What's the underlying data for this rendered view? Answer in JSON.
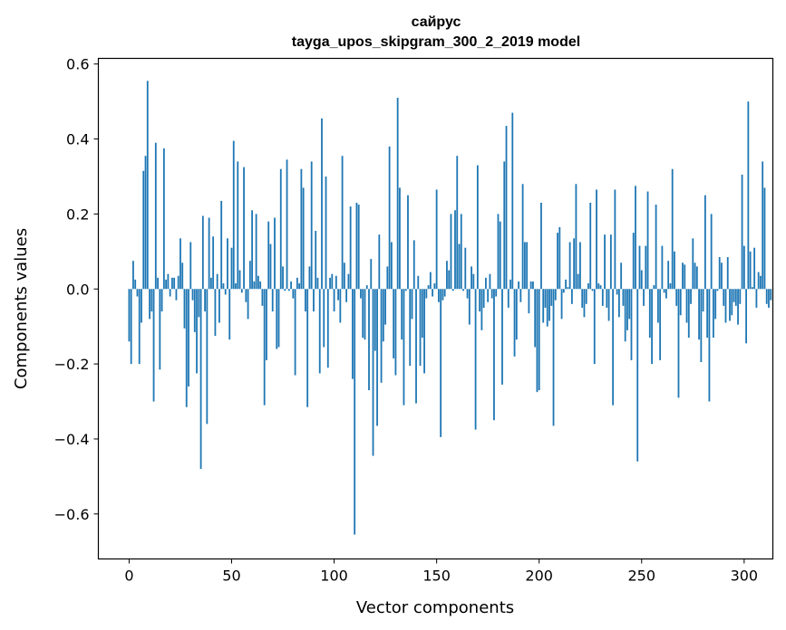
{
  "chart_data": {
    "type": "bar",
    "title_line1": "сайрус",
    "title_line2": "tayga_upos_skipgram_300_2_2019 model",
    "xlabel": "Vector components",
    "ylabel": "Components values",
    "xlim": [
      -15,
      314
    ],
    "ylim": [
      -0.72,
      0.615
    ],
    "xticks": [
      0,
      50,
      100,
      150,
      200,
      250,
      300
    ],
    "xtick_labels": [
      "0",
      "50",
      "100",
      "150",
      "200",
      "250",
      "300"
    ],
    "yticks": [
      -0.6,
      -0.4,
      -0.2,
      0.0,
      0.2,
      0.4,
      0.6
    ],
    "ytick_labels": [
      "−0.6",
      "−0.4",
      "−0.2",
      "0.0",
      "0.2",
      "0.4",
      "0.6"
    ],
    "grid": false,
    "bar_color": "#1f77b4",
    "values": [
      -0.14,
      -0.2,
      0.075,
      0.025,
      -0.02,
      -0.2,
      -0.09,
      0.315,
      0.355,
      0.555,
      -0.08,
      -0.06,
      -0.3,
      0.39,
      0.03,
      -0.215,
      -0.06,
      0.375,
      0.025,
      0.04,
      -0.02,
      0.03,
      0.03,
      -0.03,
      0.035,
      0.135,
      0.07,
      -0.105,
      -0.315,
      -0.26,
      0.125,
      -0.03,
      -0.115,
      -0.225,
      -0.075,
      -0.48,
      0.195,
      -0.06,
      -0.36,
      0.19,
      0.03,
      0.14,
      -0.125,
      0.04,
      -0.09,
      0.235,
      0.015,
      -0.015,
      0.135,
      -0.135,
      0.11,
      0.395,
      0.015,
      0.34,
      0.05,
      -0.01,
      0.325,
      -0.035,
      -0.08,
      0.075,
      0.21,
      0.02,
      0.2,
      0.035,
      0.02,
      -0.045,
      -0.31,
      -0.19,
      0.18,
      0.12,
      -0.06,
      0.19,
      -0.16,
      -0.155,
      0.32,
      0.06,
      -0.005,
      0.345,
      -0.005,
      0.02,
      -0.025,
      -0.23,
      0.03,
      0.015,
      0.32,
      0.27,
      -0.06,
      -0.315,
      0.06,
      0.34,
      -0.06,
      0.155,
      0.03,
      -0.225,
      0.455,
      -0.155,
      0.3,
      -0.21,
      0.03,
      0.04,
      -0.06,
      0.035,
      -0.03,
      -0.09,
      0.355,
      0.07,
      -0.035,
      0.04,
      0.22,
      -0.24,
      -0.655,
      0.23,
      0.225,
      -0.025,
      -0.13,
      -0.135,
      0.01,
      -0.27,
      0.08,
      -0.445,
      -0.165,
      -0.365,
      0.145,
      -0.25,
      -0.14,
      -0.095,
      0.06,
      0.38,
      0.125,
      -0.185,
      -0.23,
      0.51,
      0.27,
      -0.135,
      -0.31,
      -0.005,
      0.25,
      -0.205,
      -0.08,
      0.13,
      -0.305,
      0.035,
      -0.205,
      -0.13,
      -0.225,
      -0.025,
      0.01,
      0.045,
      -0.02,
      0.015,
      0.265,
      -0.035,
      -0.395,
      -0.03,
      -0.02,
      0.075,
      0.05,
      0.2,
      -0.005,
      0.21,
      0.355,
      0.12,
      0.2,
      -0.005,
      0.11,
      -0.025,
      -0.095,
      0.06,
      0.04,
      -0.375,
      0.33,
      -0.06,
      -0.11,
      -0.05,
      0.03,
      -0.035,
      0.04,
      -0.025,
      -0.35,
      -0.02,
      0.2,
      0.18,
      -0.255,
      0.34,
      0.435,
      -0.05,
      0.025,
      0.47,
      -0.18,
      -0.135,
      0.02,
      -0.035,
      0.28,
      0.125,
      0.125,
      -0.065,
      0.02,
      0.02,
      -0.155,
      -0.275,
      -0.27,
      0.23,
      -0.09,
      -0.05,
      -0.1,
      -0.085,
      -0.045,
      -0.365,
      -0.03,
      0.15,
      0.165,
      -0.08,
      -0.01,
      0.025,
      0.005,
      0.125,
      -0.04,
      0.135,
      0.28,
      0.04,
      0.125,
      -0.05,
      -0.075,
      -0.04,
      0.015,
      0.23,
      -0.005,
      -0.2,
      0.265,
      0.015,
      0.01,
      -0.045,
      0.145,
      -0.05,
      -0.085,
      0.145,
      -0.31,
      0.265,
      -0.015,
      -0.075,
      0.07,
      -0.045,
      -0.14,
      -0.11,
      -0.08,
      -0.19,
      0.15,
      0.275,
      -0.46,
      0.115,
      0.05,
      -0.045,
      0.115,
      0.26,
      -0.13,
      -0.2,
      0.01,
      0.225,
      -0.09,
      -0.19,
      0.115,
      -0.01,
      -0.025,
      0.075,
      0.015,
      0.32,
      0.1,
      -0.045,
      -0.29,
      -0.07,
      0.07,
      0.065,
      -0.09,
      -0.13,
      -0.04,
      0.135,
      0.07,
      0.06,
      -0.135,
      -0.195,
      -0.06,
      0.25,
      -0.13,
      -0.3,
      0.2,
      -0.13,
      -0.08,
      -0.005,
      0.085,
      0.07,
      -0.045,
      -0.09,
      0.085,
      -0.085,
      -0.07,
      -0.035,
      -0.045,
      -0.095,
      -0.04,
      0.305,
      0.115,
      -0.145,
      0.5,
      0.1,
      0.005,
      0.11,
      -0.05,
      0.045,
      0.035,
      0.34,
      0.27,
      -0.04,
      -0.05,
      -0.03
    ]
  }
}
